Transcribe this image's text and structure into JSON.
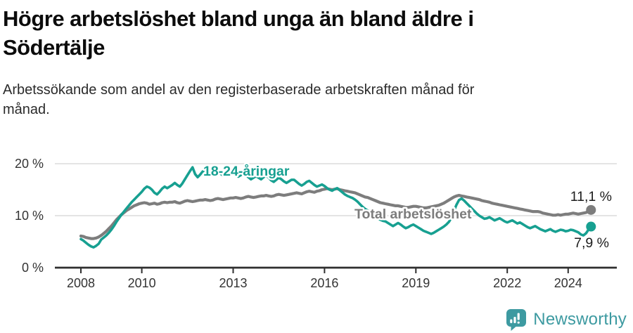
{
  "header": {
    "title_lines": [
      "Högre arbetslöshet bland unga än bland äldre i",
      "Södertälje"
    ],
    "subtitle_lines": [
      "Arbetssökande som andel av den registerbaserade arbetskraften månad för",
      "månad."
    ]
  },
  "chart_data": {
    "type": "line",
    "frequency": "monthly",
    "x_start": "2008-01",
    "x_end": "2024-10",
    "ylim": [
      0,
      21
    ],
    "grid": "horizontal",
    "y_ticks": [
      {
        "value": 0,
        "label": "0 %"
      },
      {
        "value": 10,
        "label": "10 %"
      },
      {
        "value": 20,
        "label": "20 %"
      }
    ],
    "x_ticks": [
      {
        "year": 2008,
        "label": "2008"
      },
      {
        "year": 2010,
        "label": "2010"
      },
      {
        "year": 2013,
        "label": "2013"
      },
      {
        "year": 2016,
        "label": "2016"
      },
      {
        "year": 2019,
        "label": "2019"
      },
      {
        "year": 2022,
        "label": "2022"
      },
      {
        "year": 2024,
        "label": "2024"
      }
    ],
    "series": [
      {
        "name": "Total arbetslöshet",
        "color": "#7d7d7d",
        "line_width": 4.2,
        "end_label": "11,1 %",
        "label_pos": {
          "x": 504,
          "y": 311
        },
        "end_label_pos": {
          "x": 870,
          "y": 286
        },
        "values": [
          6.1,
          6.0,
          5.8,
          5.7,
          5.6,
          5.6,
          5.7,
          5.9,
          6.2,
          6.6,
          7.0,
          7.5,
          8.0,
          8.6,
          9.2,
          9.7,
          10.2,
          10.6,
          11.0,
          11.3,
          11.6,
          11.9,
          12.1,
          12.3,
          12.4,
          12.5,
          12.4,
          12.2,
          12.3,
          12.4,
          12.2,
          12.3,
          12.5,
          12.6,
          12.5,
          12.6,
          12.6,
          12.7,
          12.5,
          12.4,
          12.6,
          12.8,
          12.9,
          12.8,
          12.7,
          12.8,
          12.9,
          13.0,
          13.0,
          13.1,
          13.0,
          12.9,
          13.0,
          13.2,
          13.3,
          13.2,
          13.1,
          13.2,
          13.3,
          13.4,
          13.4,
          13.5,
          13.4,
          13.3,
          13.4,
          13.6,
          13.7,
          13.6,
          13.5,
          13.6,
          13.7,
          13.8,
          13.8,
          13.9,
          13.8,
          13.7,
          13.8,
          14.0,
          14.1,
          14.0,
          13.9,
          14.0,
          14.1,
          14.2,
          14.3,
          14.4,
          14.3,
          14.2,
          14.4,
          14.6,
          14.7,
          14.6,
          14.5,
          14.7,
          14.8,
          15.0,
          15.1,
          15.2,
          15.1,
          15.0,
          15.1,
          15.2,
          15.0,
          14.9,
          14.8,
          14.7,
          14.6,
          14.5,
          14.4,
          14.2,
          14.0,
          13.8,
          13.6,
          13.5,
          13.3,
          13.1,
          12.9,
          12.7,
          12.5,
          12.4,
          12.3,
          12.2,
          12.1,
          12.0,
          11.9,
          11.9,
          11.8,
          11.7,
          11.6,
          11.6,
          11.7,
          11.8,
          11.8,
          11.7,
          11.6,
          11.5,
          11.5,
          11.6,
          11.7,
          11.8,
          11.9,
          12.0,
          12.2,
          12.4,
          12.7,
          13.0,
          13.3,
          13.6,
          13.8,
          13.9,
          13.8,
          13.7,
          13.6,
          13.5,
          13.4,
          13.3,
          13.2,
          13.1,
          12.9,
          12.8,
          12.7,
          12.6,
          12.4,
          12.3,
          12.2,
          12.1,
          12.0,
          11.9,
          11.8,
          11.7,
          11.6,
          11.5,
          11.4,
          11.3,
          11.2,
          11.1,
          11.0,
          10.9,
          10.8,
          10.8,
          10.8,
          10.7,
          10.5,
          10.4,
          10.3,
          10.2,
          10.1,
          10.1,
          10.2,
          10.1,
          10.2,
          10.3,
          10.3,
          10.4,
          10.5,
          10.4,
          10.3,
          10.4,
          10.5,
          10.6,
          10.9,
          11.1
        ]
      },
      {
        "name": "18-24-åringar",
        "color": "#17a091",
        "line_width": 3.6,
        "end_label": "7,9 %",
        "label_pos": {
          "x": 289,
          "y": 250
        },
        "end_label_pos": {
          "x": 866,
          "y": 352
        },
        "values": [
          5.5,
          5.2,
          4.8,
          4.4,
          4.1,
          3.9,
          4.2,
          4.6,
          5.4,
          5.8,
          6.2,
          6.7,
          7.3,
          8.0,
          8.8,
          9.5,
          10.2,
          10.8,
          11.4,
          12.0,
          12.6,
          13.1,
          13.6,
          14.1,
          14.6,
          15.2,
          15.6,
          15.4,
          15.0,
          14.4,
          14.1,
          14.6,
          15.2,
          15.6,
          15.3,
          15.6,
          15.9,
          16.3,
          15.9,
          15.6,
          16.2,
          17.0,
          17.8,
          18.6,
          19.3,
          18.0,
          17.4,
          17.9,
          18.5,
          18.9,
          18.4,
          18.0,
          18.4,
          18.8,
          18.5,
          18.1,
          17.7,
          18.0,
          18.3,
          18.6,
          18.3,
          17.9,
          17.5,
          17.8,
          18.1,
          17.8,
          17.4,
          17.0,
          17.3,
          17.6,
          17.3,
          17.0,
          17.4,
          17.7,
          17.3,
          16.8,
          16.5,
          16.9,
          17.3,
          17.0,
          16.6,
          16.3,
          16.6,
          16.9,
          16.9,
          16.5,
          16.1,
          15.8,
          16.1,
          16.5,
          16.7,
          16.3,
          15.9,
          15.6,
          15.8,
          16.0,
          15.7,
          15.3,
          15.0,
          14.8,
          15.1,
          15.3,
          14.9,
          14.5,
          14.1,
          13.8,
          13.6,
          13.4,
          13.1,
          12.7,
          12.2,
          11.7,
          11.3,
          11.0,
          10.7,
          10.3,
          9.9,
          9.5,
          9.2,
          9.0,
          8.9,
          8.6,
          8.3,
          8.0,
          8.3,
          8.6,
          8.3,
          7.9,
          7.6,
          7.8,
          8.1,
          8.3,
          8.0,
          7.7,
          7.4,
          7.1,
          6.9,
          6.7,
          6.5,
          6.7,
          7.0,
          7.3,
          7.6,
          7.9,
          8.3,
          8.8,
          9.6,
          10.9,
          12.1,
          13.0,
          13.3,
          12.9,
          12.4,
          11.9,
          11.4,
          10.9,
          10.4,
          10.0,
          9.7,
          9.4,
          9.5,
          9.7,
          9.4,
          9.1,
          9.3,
          9.5,
          9.2,
          8.9,
          8.7,
          8.9,
          9.1,
          8.8,
          8.5,
          8.7,
          8.4,
          8.1,
          7.8,
          7.6,
          7.8,
          8.0,
          7.7,
          7.4,
          7.2,
          7.0,
          7.2,
          7.4,
          7.1,
          6.9,
          7.1,
          7.3,
          7.2,
          7.0,
          7.1,
          7.3,
          7.2,
          7.0,
          6.8,
          6.4,
          6.2,
          6.6,
          7.3,
          7.9
        ]
      }
    ],
    "colors": {
      "axis": "#2f2f2f",
      "grid": "#dcdcdc",
      "tick_label": "#333333",
      "value_label": "#1c1c1c"
    }
  },
  "footer": {
    "brand": "Newsworthy",
    "logo_color": "#3d9aa1"
  }
}
